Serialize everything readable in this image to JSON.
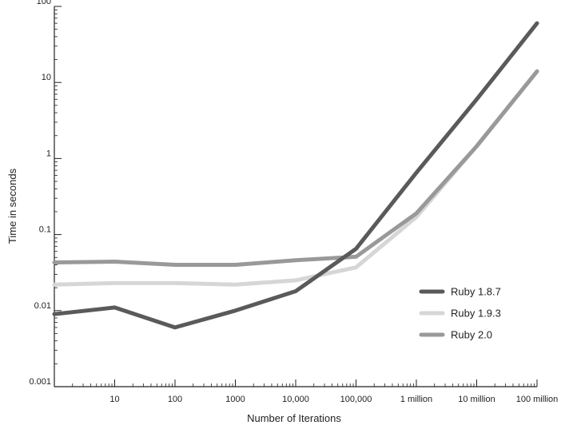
{
  "chart_data": {
    "type": "line",
    "title": "",
    "xlabel": "Number of Iterations",
    "ylabel": "Time in seconds",
    "x_scale": "log",
    "y_scale": "log",
    "xlim": [
      1,
      100000000
    ],
    "ylim": [
      0.001,
      100
    ],
    "grid": false,
    "legend_position": "right",
    "x": [
      1,
      10,
      100,
      1000,
      10000,
      100000,
      1000000,
      10000000,
      100000000
    ],
    "x_ticks": [
      {
        "value": 10,
        "label": "10"
      },
      {
        "value": 100,
        "label": "100"
      },
      {
        "value": 1000,
        "label": "1000"
      },
      {
        "value": 10000,
        "label": "10,000"
      },
      {
        "value": 100000,
        "label": "100,000"
      },
      {
        "value": 1000000,
        "label": "1 million"
      },
      {
        "value": 10000000,
        "label": "10 million"
      },
      {
        "value": 100000000,
        "label": "100 million"
      }
    ],
    "y_ticks": [
      {
        "value": 0.001,
        "label": "0.001"
      },
      {
        "value": 0.01,
        "label": "0.01"
      },
      {
        "value": 0.1,
        "label": "0.1"
      },
      {
        "value": 1,
        "label": "1"
      },
      {
        "value": 10,
        "label": "10"
      },
      {
        "value": 100,
        "label": "100"
      }
    ],
    "series": [
      {
        "name": "Ruby 1.8.7",
        "color": "#5a5a5a",
        "values": [
          0.009,
          0.011,
          0.006,
          0.01,
          0.018,
          0.065,
          0.65,
          6.0,
          60
        ]
      },
      {
        "name": "Ruby 1.9.3",
        "color": "#d6d6d6",
        "values": [
          0.022,
          0.023,
          0.023,
          0.022,
          0.025,
          0.037,
          0.17,
          1.45,
          14
        ]
      },
      {
        "name": "Ruby 2.0",
        "color": "#999999",
        "values": [
          0.043,
          0.044,
          0.04,
          0.04,
          0.046,
          0.051,
          0.19,
          1.45,
          14
        ]
      }
    ]
  }
}
